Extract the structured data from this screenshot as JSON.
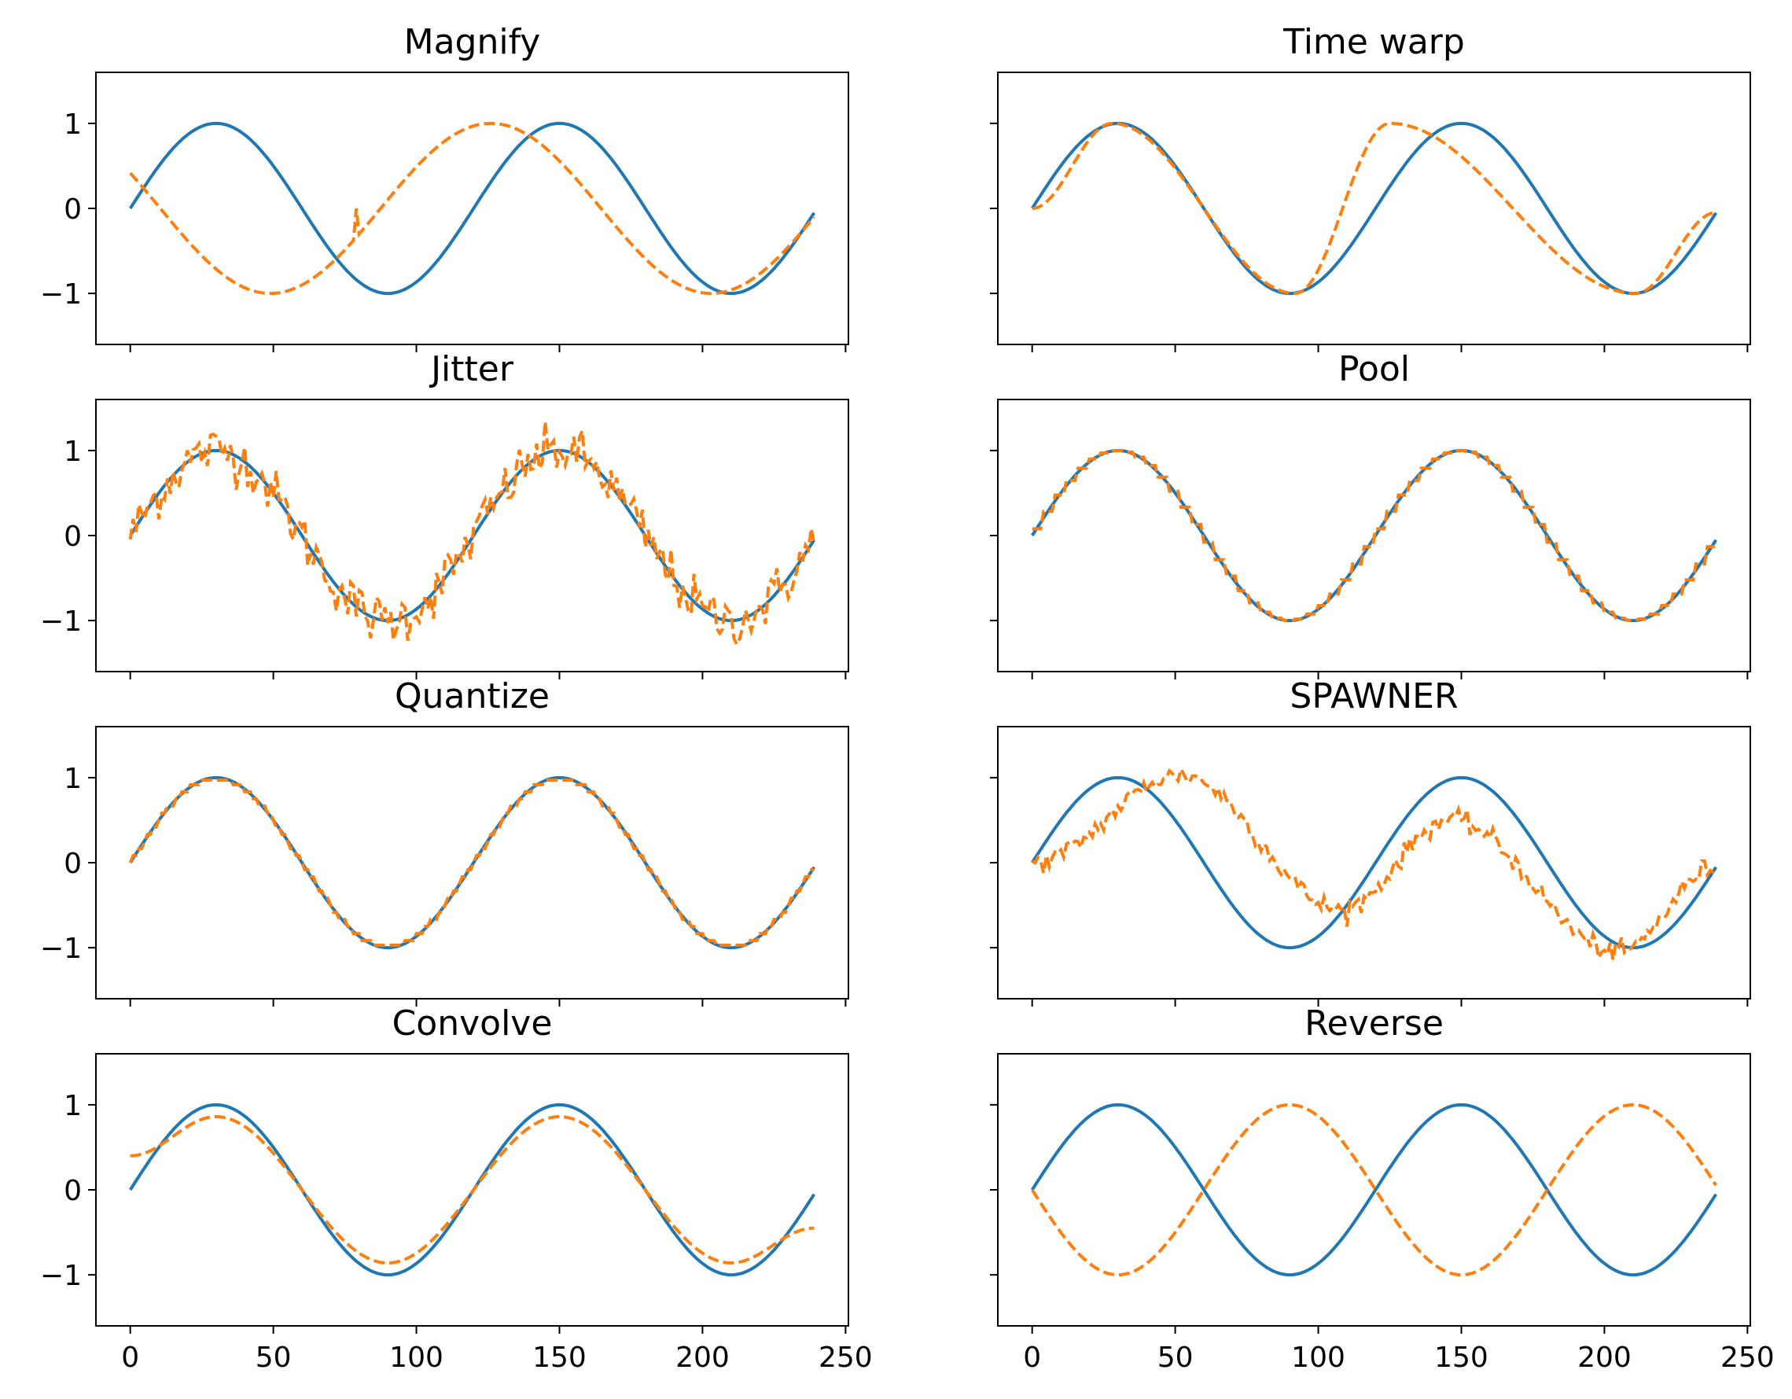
{
  "chart_data": {
    "type": "line",
    "layout": "4x2 grid of line subplots, shared x and y axes",
    "xlim": [
      -12,
      251
    ],
    "ylim": [
      -1.6,
      1.6
    ],
    "xticks": [
      0,
      50,
      100,
      150,
      200,
      250
    ],
    "yticks": [
      1,
      0,
      -1
    ],
    "xtick_labels": [
      "0",
      "50",
      "100",
      "150",
      "200",
      "250"
    ],
    "ytick_labels": [
      "1",
      "0",
      "−1"
    ],
    "colors": {
      "original": "#1f77b4",
      "augmented": "#ff7f0e"
    },
    "line_styles": {
      "original": "solid",
      "augmented": "dashed"
    },
    "original_series": {
      "formula": "sin(2*pi*t/120)",
      "t_range": [
        0,
        239
      ]
    },
    "panels": [
      {
        "title": "Magnify",
        "augmented": {
          "shape": "sin(2*pi*(t+15)*120/240/120)-like slow wave",
          "peaks": [
            [
              126,
              1.0
            ]
          ],
          "troughs": [
            [
              49,
              -1.0
            ],
            [
              205,
              -1.0
            ]
          ],
          "start": 0.5,
          "end": -0.05
        }
      },
      {
        "title": "Time warp",
        "augmented": {
          "peaks": [
            [
              28,
              1.0
            ],
            [
              125,
              1.0
            ]
          ],
          "troughs": [
            [
              92,
              -1.0
            ],
            [
              211,
              -1.0
            ]
          ],
          "start": 0.0,
          "end": -0.05
        }
      },
      {
        "title": "Jitter",
        "augmented": {
          "shape": "original plus random noise, sigma approx 0.15"
        }
      },
      {
        "title": "Pool",
        "augmented": {
          "shape": "original with step-wise pooling, window approx 4"
        }
      },
      {
        "title": "Quantize",
        "augmented": {
          "shape": "original quantized to small levels, peaks clipped near 0.97"
        }
      },
      {
        "title": "SPAWNER",
        "augmented": {
          "peaks": [
            [
              52,
              1.03
            ],
            [
              146,
              0.5
            ]
          ],
          "troughs": [
            [
              108,
              -0.55
            ],
            [
              205,
              -1.05
            ]
          ],
          "start": 0.0,
          "end": -0.05
        }
      },
      {
        "title": "Convolve",
        "augmented": {
          "shape": "smoothed original, amplitude approx 0.86",
          "start": 0.4,
          "end": -0.45
        }
      },
      {
        "title": "Reverse",
        "augmented": {
          "formula": "-sin(2*pi*t/120)"
        }
      }
    ]
  }
}
